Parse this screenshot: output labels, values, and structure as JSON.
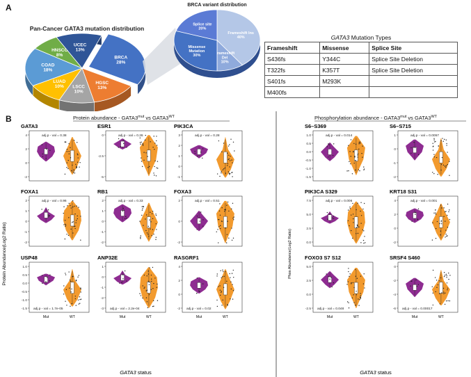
{
  "panelA": {
    "letter": "A",
    "pan_title": "Pan-Cancer GATA3 mutation distribution",
    "brca_title": "BRCA variant distribution",
    "pan_slices": [
      {
        "name": "BRCA",
        "value": 28,
        "color": "#4472c4"
      },
      {
        "name": "HGSC",
        "value": 13,
        "color": "#ed7d31"
      },
      {
        "name": "LSCC",
        "value": 10,
        "color": "#a5a5a5"
      },
      {
        "name": "LUAD",
        "value": 10,
        "color": "#ffc000"
      },
      {
        "name": "COAD",
        "value": 18,
        "color": "#5b9bd5"
      },
      {
        "name": "HNSCC",
        "value": 8,
        "color": "#70ad47"
      },
      {
        "name": "UCEC",
        "value": 13,
        "color": "#2f5597"
      }
    ],
    "pan_labels": [
      "BRCA\n28%",
      "HGSC\n13%",
      "LSCC\n10%",
      "LUAD\n10%",
      "COAD\n18%",
      "HNSCC\n8%",
      "UCEC\n13%"
    ],
    "brca_slices": [
      {
        "name": "Frameshift Ins",
        "value": 40,
        "color": "#b4c7e7"
      },
      {
        "name": "Frameshift Del",
        "value": 10,
        "color": "#8faadc"
      },
      {
        "name": "Missense Mutation",
        "value": 30,
        "color": "#4472c4"
      },
      {
        "name": "Splice site",
        "value": 20,
        "color": "#5b7bd5"
      }
    ],
    "brca_labels": [
      "Frameshift Ins\n40%",
      "Frameshift\nDel\n10%",
      "Missense\nMutation\n30%",
      "Splice site\n20%"
    ],
    "table": {
      "caption_gene": "GATA3",
      "caption_rest": " Mutation Types",
      "headers": [
        "Frameshift",
        "Missense",
        "Splice Site"
      ],
      "rows": [
        [
          "S436fs",
          "Y344C",
          "Splice Site Deletion"
        ],
        [
          "T322fs",
          "K357T",
          "Splice Site Deletion"
        ],
        [
          "S401fs",
          "M293K",
          ""
        ],
        [
          "M400fs",
          "",
          ""
        ]
      ]
    }
  },
  "panelB": {
    "letter": "B",
    "protein_title": "Protein abundance - GATA3",
    "phos_title": "Phosphorylation abundance - GATA3",
    "mut_sup": "mut",
    "wt_sup": "WT",
    "vs": " vs GATA3",
    "protein_ylabel": "Protein Abundance(Log2 Ratio)",
    "phos_ylabel": "Phos Abundance(Log2 Ratio)",
    "xlabel_gene": "GATA3",
    "xlabel_rest": " status",
    "x_categories": [
      "Mut",
      "WT"
    ]
  },
  "chart_data": [
    {
      "type": "violin",
      "title": "GATA3",
      "annotation": "adj.p - val = 0.38",
      "ylim": [
        -2,
        4
      ],
      "yticks": [
        "4",
        "2",
        "0",
        "-2"
      ],
      "categories": [
        "Mut",
        "WT"
      ]
    },
    {
      "type": "violin",
      "title": "ESR1",
      "annotation": "adj.p - val = 0.26",
      "ylim": [
        -5,
        2
      ],
      "yticks": [
        "0",
        "-2.5",
        "-5"
      ],
      "categories": [
        "Mut",
        "WT"
      ]
    },
    {
      "type": "violin",
      "title": "PIK3CA",
      "annotation": "adj.p - val = 0.28",
      "ylim": [
        -1,
        4
      ],
      "yticks": [
        "3",
        "2",
        "1",
        "0",
        "-1"
      ],
      "categories": [
        "Mut",
        "WT"
      ]
    },
    {
      "type": "violin",
      "title": "FOXA1",
      "annotation": "adj.p - val = 0.96",
      "ylim": [
        -2,
        2
      ],
      "yticks": [
        "2",
        "1",
        "0",
        "-1",
        "-2"
      ],
      "categories": [
        "Mut",
        "WT"
      ]
    },
    {
      "type": "violin",
      "title": "RB1",
      "annotation": "adj.p - val = 0.33",
      "ylim": [
        -2,
        2
      ],
      "yticks": [
        "2",
        "1",
        "0",
        "-1",
        "-2"
      ],
      "categories": [
        "Mut",
        "WT"
      ]
    },
    {
      "type": "violin",
      "title": "FOXA3",
      "annotation": "adj.p - val = 0.51",
      "ylim": [
        -3,
        4
      ],
      "yticks": [
        "2",
        "0",
        "-2"
      ],
      "categories": [
        "Mut",
        "WT"
      ]
    },
    {
      "type": "violin",
      "title": "USP48",
      "annotation": "adj.p - val = 1.7e-05",
      "ylim": [
        -1.5,
        1.2
      ],
      "yticks": [
        "1.0",
        "0.5",
        "0.0",
        "-0.5",
        "-1.0",
        "-1.5"
      ],
      "categories": [
        "Mut",
        "WT"
      ]
    },
    {
      "type": "violin",
      "title": "ANP32E",
      "annotation": "adj.p - val = 2.2e-04",
      "ylim": [
        -3,
        1.5
      ],
      "yticks": [
        "1",
        "0",
        "-1",
        "-2",
        "-3"
      ],
      "categories": [
        "Mut",
        "WT"
      ]
    },
    {
      "type": "violin",
      "title": "RASGRF1",
      "annotation": "adj.p - val = 0.02",
      "ylim": [
        -2,
        5
      ],
      "yticks": [
        "4",
        "2",
        "0",
        "-2"
      ],
      "categories": [
        "Mut",
        "WT"
      ]
    },
    {
      "type": "violin",
      "title": "S6–S369",
      "annotation": "adj.p - val = 0.014",
      "ylim": [
        -1.7,
        1.2
      ],
      "yticks": [
        "1.0",
        "0.5",
        "0.0",
        "-0.5",
        "-1.0",
        "-1.5"
      ],
      "categories": [
        "Mut",
        "WT"
      ]
    },
    {
      "type": "violin",
      "title": "S6–S715",
      "annotation": "adj.p - val = 0.0057",
      "ylim": [
        -3,
        1.7
      ],
      "yticks": [
        "1",
        "0",
        "-1",
        "-2"
      ],
      "categories": [
        "Mut",
        "WT"
      ]
    },
    {
      "type": "violin",
      "title": "PIK3CA S329",
      "annotation": "adj.p - val = 0.006",
      "ylim": [
        -1.5,
        8
      ],
      "yticks": [
        "7.5",
        "5.0",
        "2.5",
        "0.0"
      ],
      "categories": [
        "Mut",
        "WT"
      ]
    },
    {
      "type": "violin",
      "title": "KRT18 S31",
      "annotation": "adj.p - val = 0.001",
      "ylim": [
        -2.5,
        5
      ],
      "yticks": [
        "4",
        "2",
        "0",
        "-2"
      ],
      "categories": [
        "Mut",
        "WT"
      ]
    },
    {
      "type": "violin",
      "title": "FOXO3 S7 S12",
      "annotation": "adj.p - val = 0.048",
      "ylim": [
        -3,
        6
      ],
      "yticks": [
        "5.0",
        "2.5",
        "0.0",
        "-2.5"
      ],
      "categories": [
        "Mut",
        "WT"
      ]
    },
    {
      "type": "violin",
      "title": "SRSF4 S460",
      "annotation": "adj.p - val = 0.00017",
      "ylim": [
        -6,
        0.8
      ],
      "yticks": [
        "0",
        "-2",
        "-4",
        "-6"
      ],
      "categories": [
        "Mut",
        "WT"
      ]
    }
  ]
}
